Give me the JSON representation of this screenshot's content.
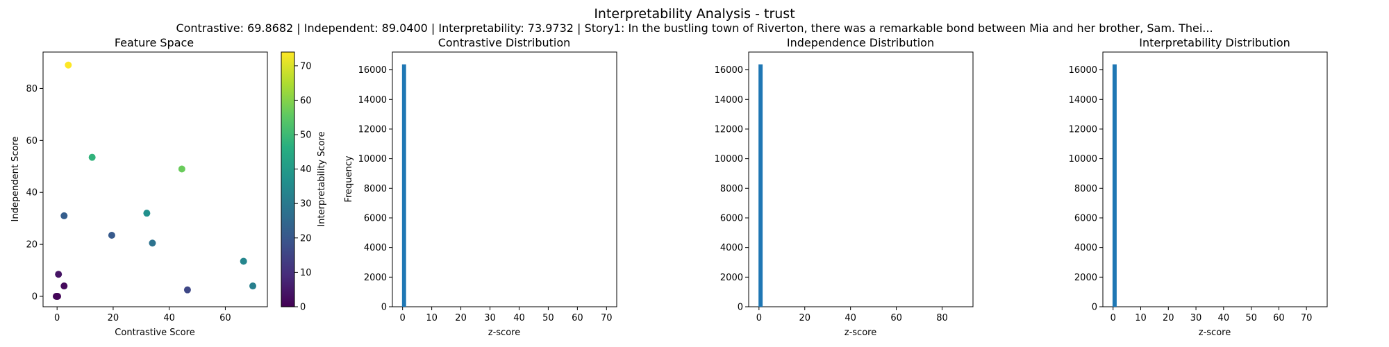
{
  "figure": {
    "title": "Interpretability Analysis - trust",
    "subtitle": "Contrastive: 69.8682 | Independent: 89.0400 | Interpretability: 73.9732 | Story1: In the bustling town of Riverton, there was a remarkable bond between Mia and her brother, Sam. Thei..."
  },
  "chart_data": [
    {
      "type": "scatter",
      "title": "Feature Space",
      "xlabel": "Contrastive Score",
      "ylabel": "Independent Score",
      "xlim": [
        -5,
        75
      ],
      "ylim": [
        -4,
        94
      ],
      "xticks": [
        0,
        20,
        40,
        60
      ],
      "yticks": [
        0,
        20,
        40,
        60,
        80
      ],
      "colorbar": {
        "label": "Interpretability Score",
        "range": [
          0,
          74
        ],
        "ticks": [
          0,
          10,
          20,
          30,
          40,
          50,
          60,
          70
        ],
        "colormap": "viridis"
      },
      "points": [
        {
          "x": 4.0,
          "y": 89.0,
          "c": 74.0
        },
        {
          "x": 44.5,
          "y": 49.0,
          "c": 57.0
        },
        {
          "x": 12.5,
          "y": 53.5,
          "c": 48.0
        },
        {
          "x": 32.0,
          "y": 32.0,
          "c": 37.0
        },
        {
          "x": 2.5,
          "y": 31.0,
          "c": 22.0
        },
        {
          "x": 19.5,
          "y": 23.5,
          "c": 21.0
        },
        {
          "x": 34.0,
          "y": 20.5,
          "c": 28.0
        },
        {
          "x": 66.5,
          "y": 13.5,
          "c": 34.0
        },
        {
          "x": 69.8,
          "y": 4.0,
          "c": 32.0
        },
        {
          "x": 46.5,
          "y": 2.5,
          "c": 16.0
        },
        {
          "x": 0.5,
          "y": 8.5,
          "c": 4.0
        },
        {
          "x": 2.5,
          "y": 4.0,
          "c": 2.0
        },
        {
          "x": 0.0,
          "y": 0.0,
          "c": 1.0
        },
        {
          "x": 0.2,
          "y": 0.0,
          "c": 1.0
        },
        {
          "x": -0.3,
          "y": 0.0,
          "c": 1.0
        }
      ]
    },
    {
      "type": "histogram",
      "title": "Contrastive Distribution",
      "xlabel": "z-score",
      "ylabel": "Frequency",
      "xlim": [
        -3.5,
        73.5
      ],
      "ylim": [
        0,
        17200
      ],
      "xticks": [
        0,
        10,
        20,
        30,
        40,
        50,
        60,
        70
      ],
      "yticks": [
        0,
        2000,
        4000,
        6000,
        8000,
        10000,
        12000,
        14000,
        16000
      ],
      "bar_color": "#1f77b4",
      "bins": [
        {
          "x0": -0.2,
          "x1": 1.2,
          "count": 16370
        }
      ]
    },
    {
      "type": "histogram",
      "title": "Independence Distribution",
      "xlabel": "z-score",
      "ylabel": "",
      "xlim": [
        -4.5,
        93.5
      ],
      "ylim": [
        0,
        17200
      ],
      "xticks": [
        0,
        20,
        40,
        60,
        80
      ],
      "yticks": [
        0,
        2000,
        4000,
        6000,
        8000,
        10000,
        12000,
        14000,
        16000
      ],
      "bar_color": "#1f77b4",
      "bins": [
        {
          "x0": -0.2,
          "x1": 1.6,
          "count": 16370
        }
      ]
    },
    {
      "type": "histogram",
      "title": "Interpretability Distribution",
      "xlabel": "z-score",
      "ylabel": "",
      "xlim": [
        -3.7,
        77.5
      ],
      "ylim": [
        0,
        17200
      ],
      "xticks": [
        0,
        10,
        20,
        30,
        40,
        50,
        60,
        70
      ],
      "yticks": [
        0,
        2000,
        4000,
        6000,
        8000,
        10000,
        12000,
        14000,
        16000
      ],
      "bar_color": "#1f77b4",
      "bins": [
        {
          "x0": -0.2,
          "x1": 1.3,
          "count": 16370
        }
      ]
    }
  ]
}
